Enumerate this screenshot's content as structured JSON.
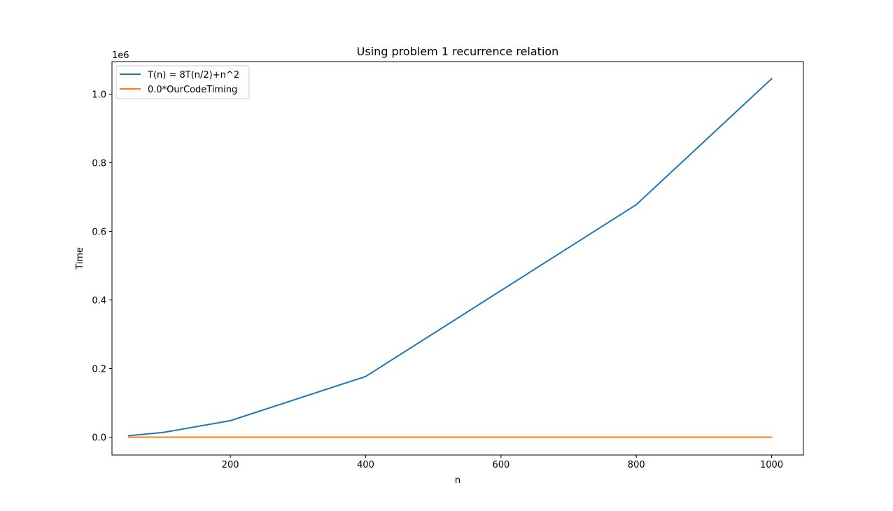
{
  "chart_data": {
    "type": "line",
    "title": "Using problem 1 recurrence relation",
    "xlabel": "n",
    "ylabel": "Time",
    "y_offset_text": "1e6",
    "xlim": [
      25,
      1047
    ],
    "ylim": [
      -52000,
      1095000
    ],
    "x_ticks": [
      200,
      400,
      600,
      800,
      1000
    ],
    "x_tick_labels": [
      "200",
      "400",
      "600",
      "800",
      "1000"
    ],
    "y_ticks": [
      0,
      200000,
      400000,
      600000,
      800000,
      1000000
    ],
    "y_tick_labels": [
      "0.0",
      "0.2",
      "0.4",
      "0.6",
      "0.8",
      "1.0"
    ],
    "grid": false,
    "legend_position": "upper-left",
    "series": [
      {
        "name": "T(n) = 8T(n/2)+n^2",
        "color": "#1f77b4",
        "x": [
          50,
          100,
          200,
          400,
          800,
          1000
        ],
        "y": [
          4500,
          13500,
          48000,
          177000,
          678000,
          1045000
        ]
      },
      {
        "name": "0.0*OurCodeTiming",
        "color": "#ff7f0e",
        "x": [
          50,
          100,
          200,
          400,
          800,
          1000
        ],
        "y": [
          0,
          0,
          0,
          0,
          0,
          0
        ]
      }
    ]
  }
}
